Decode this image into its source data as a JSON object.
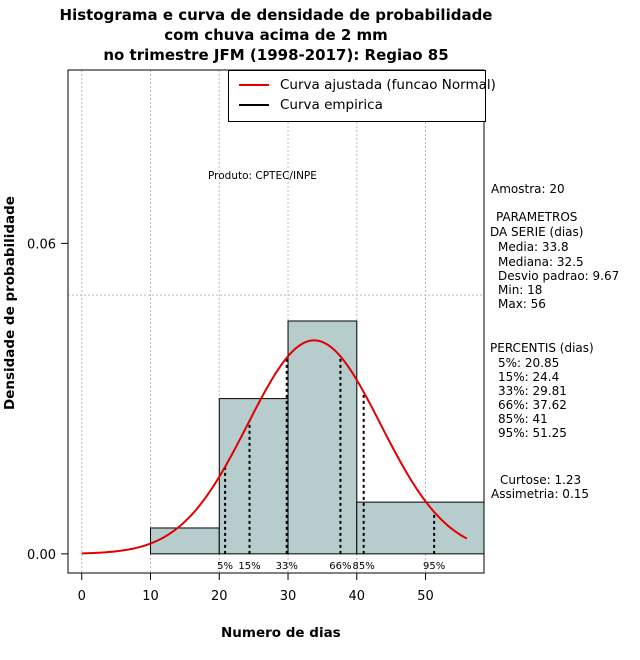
{
  "chart_data": {
    "type": "histogram",
    "title_lines": [
      "Histograma e curva de densidade de probabilidade",
      "com chuva acima de 2 mm",
      "no trimestre JFM (1998-2017): Regiao 85"
    ],
    "xlabel": "Numero de dias",
    "ylabel": "Densidade de probabilidade",
    "xlim": [
      -2,
      58.5
    ],
    "ylim": [
      -0.0037,
      0.0935
    ],
    "x_ticks": [
      0,
      10,
      20,
      30,
      40,
      50
    ],
    "y_ticks": [
      0.0,
      0.06
    ],
    "y_tick_labels": [
      "0.00",
      "0.06"
    ],
    "grid_x": [
      0,
      10,
      20,
      30,
      40,
      50
    ],
    "grid_y": [
      0.05
    ],
    "bins": [
      {
        "x0": 10,
        "x1": 20,
        "density": 0.005
      },
      {
        "x0": 20,
        "x1": 30,
        "density": 0.03
      },
      {
        "x0": 30,
        "x1": 40,
        "density": 0.045
      },
      {
        "x0": 40,
        "x1": 58.5,
        "density": 0.01
      }
    ],
    "bar_color": "#b7cccc",
    "normal_curve": {
      "mean": 33.8,
      "sd": 9.67,
      "x_from": 0,
      "x_to": 56,
      "color": "#e00000",
      "label": "Curva ajustada (funcao Normal)"
    },
    "empirical_label": "Curva empirica",
    "percentile_lines": [
      {
        "label": "5%",
        "value": 20.85
      },
      {
        "label": "15%",
        "value": 24.4
      },
      {
        "label": "33%",
        "value": 29.81
      },
      {
        "label": "66%",
        "value": 37.62
      },
      {
        "label": "85%",
        "value": 41
      },
      {
        "label": "95%",
        "value": 51.25
      }
    ],
    "annotation": "Produto: CPTEC/INPE"
  },
  "stats": {
    "amostra": "Amostra: 20",
    "parametros_title_1": "PARAMETROS",
    "parametros_title_2": "DA SERIE (dias)",
    "media": "Media: 33.8",
    "mediana": "Mediana: 32.5",
    "desvio": "Desvio padrao: 9.67",
    "min": "Min: 18",
    "max": "Max: 56",
    "percentis_title": "PERCENTIS (dias)",
    "p5": "5%: 20.85",
    "p15": "15%: 24.4",
    "p33": "33%: 29.81",
    "p66": "66%: 37.62",
    "p85": "85%: 41",
    "p95": "95%: 51.25",
    "curtose": "Curtose: 1.23",
    "assimetria": "Assimetria: 0.15"
  },
  "colors": {
    "curve": "#e00000",
    "empirical": "#000000",
    "bars": "#b7cccc",
    "grid": "#bbbbbb"
  }
}
